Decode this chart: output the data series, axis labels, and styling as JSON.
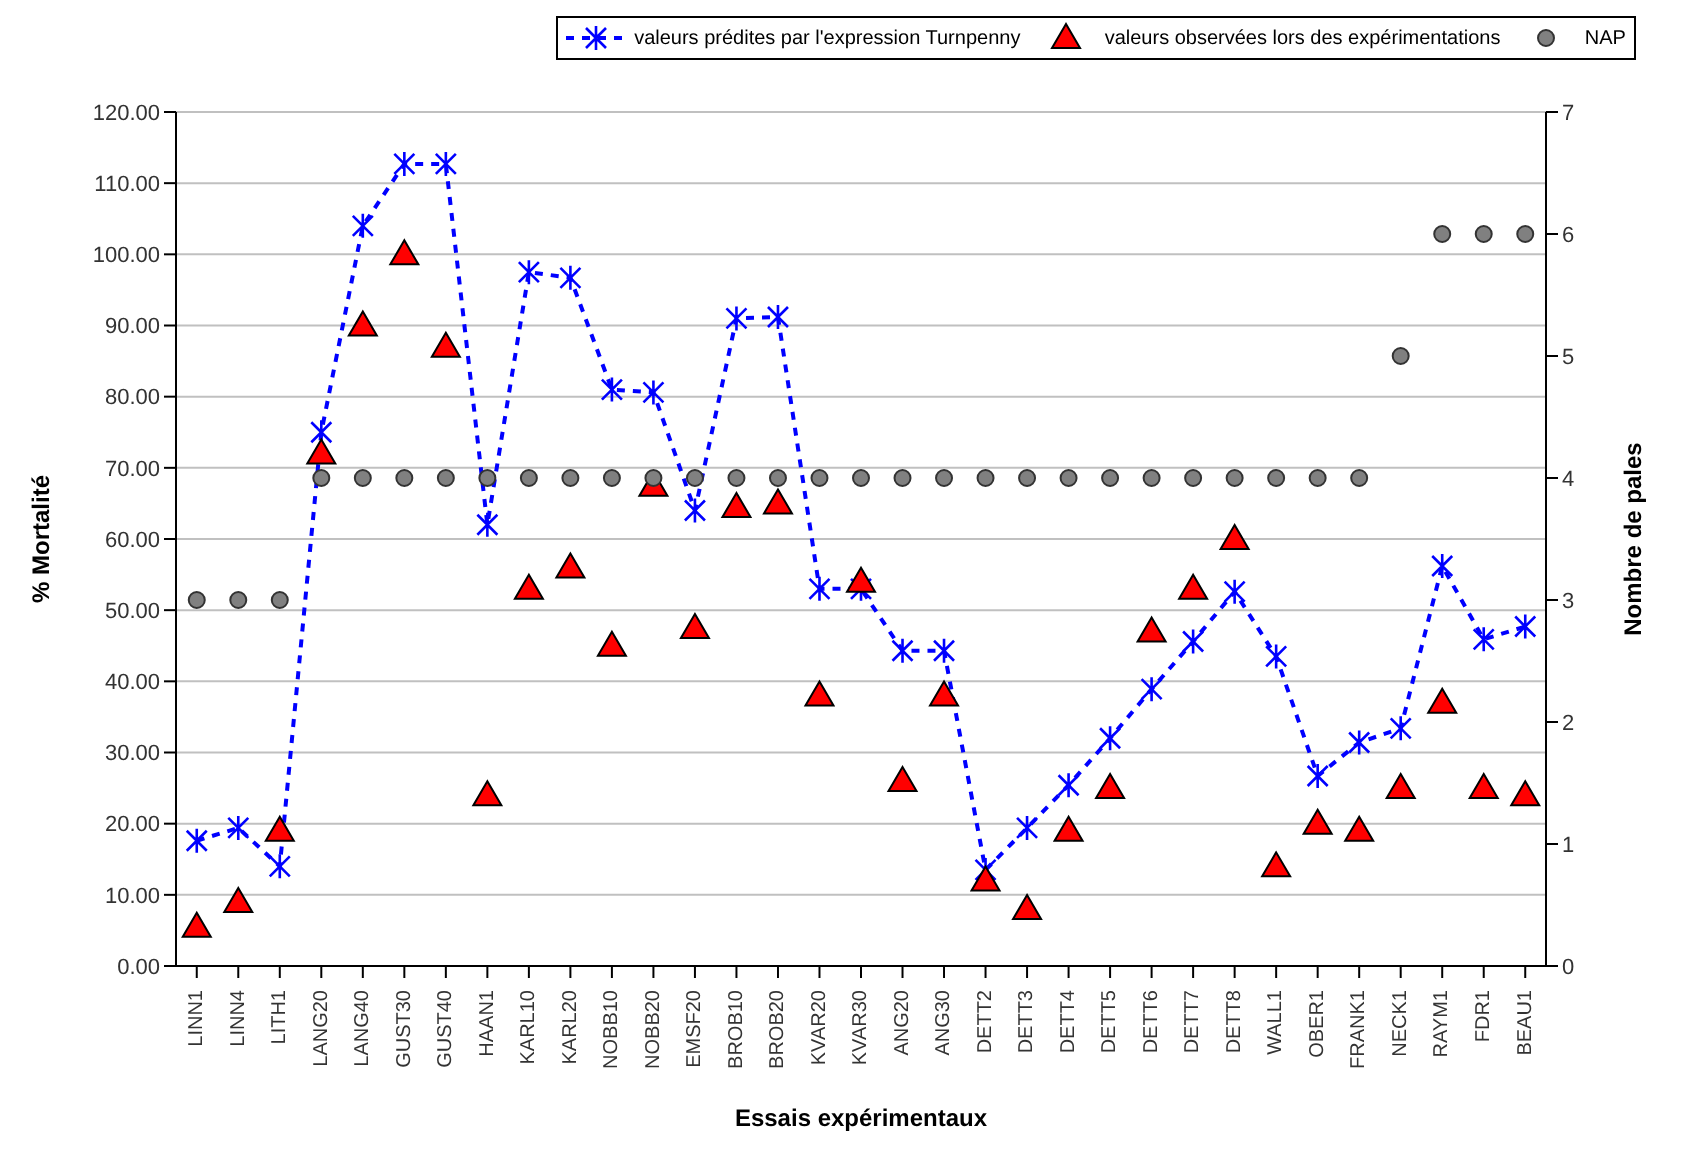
{
  "chart_data": {
    "type": "line",
    "xlabel": "Essais expérimentaux",
    "ylabel": "% Mortalité",
    "y2label": "Nombre de pales",
    "categories": [
      "LINN1",
      "LINN4",
      "LITH1",
      "LANG20",
      "LANG40",
      "GUST30",
      "GUST40",
      "HAAN1",
      "KARL10",
      "KARL20",
      "NOBB10",
      "NOBB20",
      "EMSF20",
      "BROB10",
      "BROB20",
      "KVAR20",
      "KVAR30",
      "ANG20",
      "ANG30",
      "DETT2",
      "DETT3",
      "DETT4",
      "DETT5",
      "DETT6",
      "DETT7",
      "DETT8",
      "WALL1",
      "OBER1",
      "FRANK1",
      "NECK1",
      "RAYM1",
      "FDR1",
      "BEAU1"
    ],
    "series": [
      {
        "name": "valeurs prédites par l'expression Turnpenny",
        "color": "#0000ff",
        "marker": "cross",
        "line_style": "dashed",
        "values": [
          17.6,
          19.4,
          14,
          75,
          104,
          112.7,
          112.7,
          62,
          97.5,
          96.7,
          81,
          80.6,
          64,
          91,
          91.2,
          53,
          53,
          44.3,
          44.3,
          13.5,
          19.4,
          25.4,
          32,
          38.9,
          45.6,
          52.6,
          43.5,
          26.7,
          31.4,
          33.4,
          56.2,
          45.9,
          47.7
        ]
      },
      {
        "name": "valeurs observées lors des expérimentations",
        "type": "scatter",
        "color": "#ff0000",
        "marker": "triangle",
        "values": [
          5.5,
          9,
          19,
          72,
          90,
          100,
          87,
          24,
          53,
          56,
          45,
          67.5,
          47.5,
          64.5,
          65,
          38,
          54,
          26,
          38,
          12,
          8,
          19,
          25,
          47,
          53,
          60,
          14,
          20,
          19,
          25,
          37,
          25,
          24
        ]
      },
      {
        "name": "NAP",
        "type": "scatter",
        "color": "#808080",
        "marker": "circle",
        "axis": "y2",
        "values": [
          3,
          3,
          3,
          4,
          4,
          4,
          4,
          4,
          4,
          4,
          4,
          4,
          4,
          4,
          4,
          4,
          4,
          4,
          4,
          4,
          4,
          4,
          4,
          4,
          4,
          4,
          4,
          4,
          4,
          5,
          6,
          6,
          6
        ]
      }
    ],
    "ylim": [
      0,
      120
    ],
    "yticks": [
      {
        "value": 0,
        "label": "0.00"
      },
      {
        "value": 10,
        "label": "10.00"
      },
      {
        "value": 20,
        "label": "20.00"
      },
      {
        "value": 30,
        "label": "30.00"
      },
      {
        "value": 40,
        "label": "40.00"
      },
      {
        "value": 50,
        "label": "50.00"
      },
      {
        "value": 60,
        "label": "60.00"
      },
      {
        "value": 70,
        "label": "70.00"
      },
      {
        "value": 80,
        "label": "80.00"
      },
      {
        "value": 90,
        "label": "90.00"
      },
      {
        "value": 100,
        "label": "100.00"
      },
      {
        "value": 110,
        "label": "110.00"
      },
      {
        "value": 120,
        "label": "120.00"
      }
    ],
    "y2lim": [
      0,
      7
    ],
    "y2ticks": [
      0,
      1,
      2,
      3,
      4,
      5,
      6,
      7
    ],
    "grid": "y",
    "legend": "top"
  }
}
